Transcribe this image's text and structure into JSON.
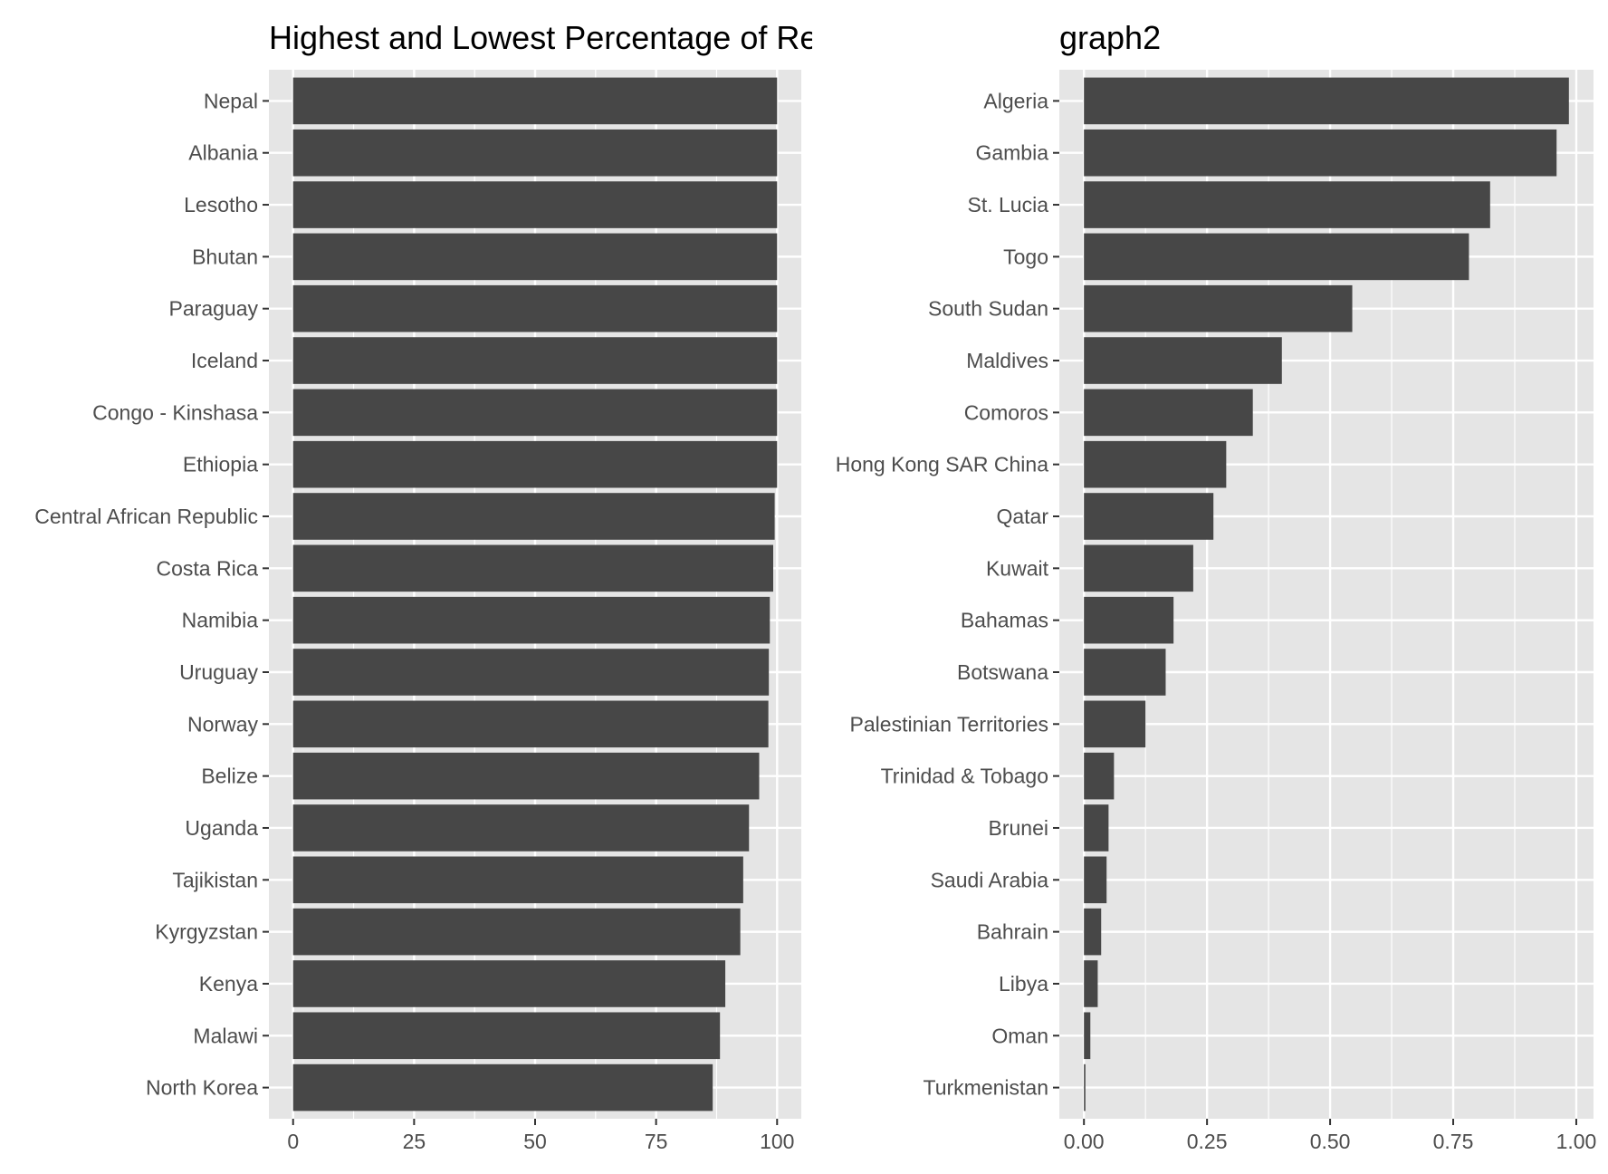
{
  "colors": {
    "panel_background": "#e5e5e5",
    "grid": "#ffffff",
    "bar": "#474747",
    "axis_text": "#4d4d4d",
    "title": "#000000"
  },
  "chart_data": [
    {
      "type": "bar",
      "orientation": "horizontal",
      "title": "Highest and Lowest Percentage of Rer",
      "xlabel": "",
      "ylabel": "",
      "xlim": [
        -5,
        105
      ],
      "xticks": [
        0,
        25,
        50,
        75,
        100
      ],
      "xtick_labels": [
        "0",
        "25",
        "50",
        "75",
        "100"
      ],
      "grid": true,
      "categories": [
        "Nepal",
        "Albania",
        "Lesotho",
        "Bhutan",
        "Paraguay",
        "Iceland",
        "Congo - Kinshasa",
        "Ethiopia",
        "Central African Republic",
        "Costa Rica",
        "Namibia",
        "Uruguay",
        "Norway",
        "Belize",
        "Uganda",
        "Tajikistan",
        "Kyrgyzstan",
        "Kenya",
        "Malawi",
        "North Korea"
      ],
      "values": [
        100,
        100,
        100,
        100,
        100,
        100,
        100,
        100,
        99.5,
        99.2,
        98.5,
        98.3,
        98.2,
        96.3,
        94.2,
        93.0,
        92.4,
        89.3,
        88.2,
        86.7
      ]
    },
    {
      "type": "bar",
      "orientation": "horizontal",
      "title": "graph2",
      "xlabel": "",
      "ylabel": "",
      "xlim": [
        -0.05,
        1.035
      ],
      "xticks": [
        0,
        0.25,
        0.5,
        0.75,
        1.0
      ],
      "xtick_labels": [
        "0.00",
        "0.25",
        "0.50",
        "0.75",
        "1.00"
      ],
      "grid": true,
      "categories": [
        "Algeria",
        "Gambia",
        "St. Lucia",
        "Togo",
        "South Sudan",
        "Maldives",
        "Comoros",
        "Hong Kong SAR China",
        "Qatar",
        "Kuwait",
        "Bahamas",
        "Botswana",
        "Palestinian Territories",
        "Trinidad & Tobago",
        "Brunei",
        "Saudi Arabia",
        "Bahrain",
        "Libya",
        "Oman",
        "Turkmenistan"
      ],
      "values": [
        0.985,
        0.96,
        0.825,
        0.782,
        0.545,
        0.402,
        0.343,
        0.289,
        0.263,
        0.222,
        0.182,
        0.166,
        0.125,
        0.061,
        0.05,
        0.046,
        0.035,
        0.028,
        0.013,
        0.003
      ]
    }
  ]
}
